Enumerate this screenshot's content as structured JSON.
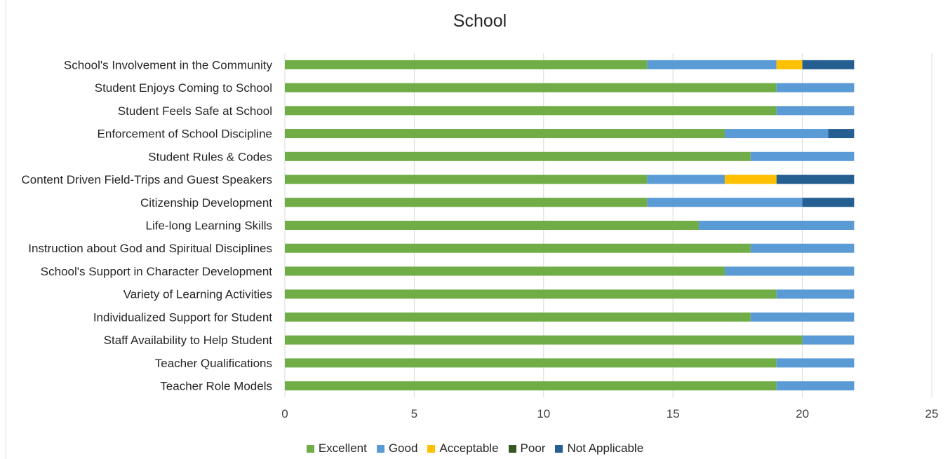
{
  "chart_data": {
    "type": "bar",
    "orientation": "horizontal",
    "stacked": true,
    "title": "School",
    "xlabel": "",
    "ylabel": "",
    "xlim": [
      0,
      25
    ],
    "x_ticks": [
      0,
      5,
      10,
      15,
      20,
      25
    ],
    "grid": "vertical",
    "legend_position": "bottom",
    "categories": [
      "School's Involvement in the Community",
      "Student Enjoys Coming to School",
      "Student Feels Safe at School",
      "Enforcement of School Discipline",
      "Student Rules & Codes",
      "Content Driven Field-Trips and Guest Speakers",
      "Citizenship Development",
      "Life-long Learning Skills",
      "Instruction about God and Spiritual Disciplines",
      "School's Support in Character Development",
      "Variety of Learning Activities",
      "Individualized Support for Student",
      "Staff Availability to Help Student",
      "Teacher Qualifications",
      "Teacher Role Models"
    ],
    "series": [
      {
        "name": "Excellent",
        "color": "#70ad47",
        "values": [
          14,
          19,
          19,
          17,
          18,
          14,
          14,
          16,
          18,
          17,
          19,
          18,
          20,
          19,
          19
        ]
      },
      {
        "name": "Good",
        "color": "#5b9bd5",
        "values": [
          5,
          3,
          3,
          4,
          4,
          3,
          6,
          6,
          4,
          5,
          3,
          4,
          2,
          3,
          3
        ]
      },
      {
        "name": "Acceptable",
        "color": "#ffc000",
        "values": [
          1,
          0,
          0,
          0,
          0,
          2,
          0,
          0,
          0,
          0,
          0,
          0,
          0,
          0,
          0
        ]
      },
      {
        "name": "Poor",
        "color": "#375623",
        "values": [
          0,
          0,
          0,
          0,
          0,
          0,
          0,
          0,
          0,
          0,
          0,
          0,
          0,
          0,
          0
        ]
      },
      {
        "name": "Not Applicable",
        "color": "#255e91",
        "values": [
          2,
          0,
          0,
          1,
          0,
          3,
          2,
          0,
          0,
          0,
          0,
          0,
          0,
          0,
          0
        ]
      }
    ]
  }
}
